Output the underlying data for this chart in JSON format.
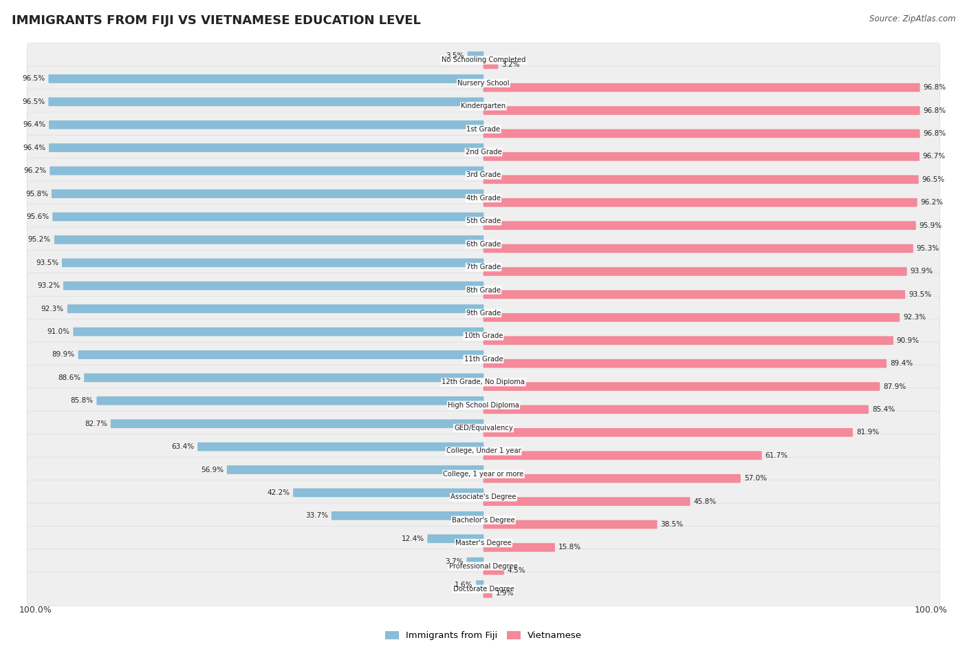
{
  "title": "IMMIGRANTS FROM FIJI VS VIETNAMESE EDUCATION LEVEL",
  "source": "Source: ZipAtlas.com",
  "categories": [
    "No Schooling Completed",
    "Nursery School",
    "Kindergarten",
    "1st Grade",
    "2nd Grade",
    "3rd Grade",
    "4th Grade",
    "5th Grade",
    "6th Grade",
    "7th Grade",
    "8th Grade",
    "9th Grade",
    "10th Grade",
    "11th Grade",
    "12th Grade, No Diploma",
    "High School Diploma",
    "GED/Equivalency",
    "College, Under 1 year",
    "College, 1 year or more",
    "Associate's Degree",
    "Bachelor's Degree",
    "Master's Degree",
    "Professional Degree",
    "Doctorate Degree"
  ],
  "fiji_values": [
    3.5,
    96.5,
    96.5,
    96.4,
    96.4,
    96.2,
    95.8,
    95.6,
    95.2,
    93.5,
    93.2,
    92.3,
    91.0,
    89.9,
    88.6,
    85.8,
    82.7,
    63.4,
    56.9,
    42.2,
    33.7,
    12.4,
    3.7,
    1.6
  ],
  "vietnamese_values": [
    3.2,
    96.8,
    96.8,
    96.8,
    96.7,
    96.5,
    96.2,
    95.9,
    95.3,
    93.9,
    93.5,
    92.3,
    90.9,
    89.4,
    87.9,
    85.4,
    81.9,
    61.7,
    57.0,
    45.8,
    38.5,
    15.8,
    4.5,
    1.9
  ],
  "fiji_color": "#89bdd8",
  "vietnamese_color": "#f4899a",
  "row_bg_color": "#efefef",
  "axis_label": "100.0%",
  "figsize": [
    14.06,
    9.75
  ]
}
